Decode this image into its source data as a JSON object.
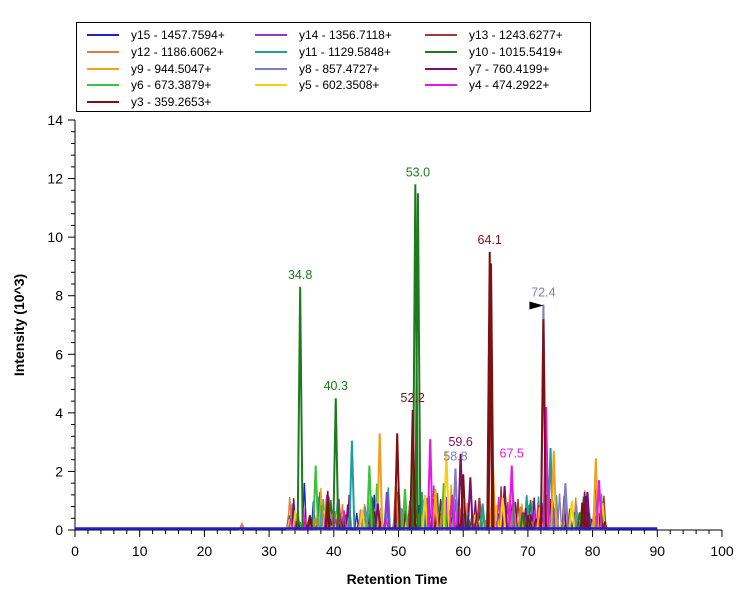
{
  "chart_data": {
    "type": "line",
    "title": "",
    "xlabel": "Retention Time",
    "ylabel": "Intensity (10^3)",
    "xlim": [
      0,
      100
    ],
    "ylim": [
      0,
      14
    ],
    "x_ticks": [
      "0",
      "10",
      "20",
      "30",
      "40",
      "50",
      "60",
      "70",
      "80",
      "90",
      "100"
    ],
    "y_ticks": [
      "0",
      "2",
      "4",
      "6",
      "8",
      "10",
      "12",
      "14"
    ],
    "grid": false,
    "legend_position": "top",
    "series": [
      {
        "name": "y15 - 1457.7594+",
        "color": "#1f1fd6",
        "peaks": []
      },
      {
        "name": "y14 - 1356.7118+",
        "color": "#9b30d0",
        "peaks": [
          [
            48.2,
            1.3
          ],
          [
            54.5,
            1.1
          ],
          [
            73.8,
            1.0
          ]
        ]
      },
      {
        "name": "y13 - 1243.6277+",
        "color": "#a33a3a",
        "peaks": [
          [
            40.8,
            0.8
          ],
          [
            51.8,
            1.0
          ],
          [
            62.5,
            1.1
          ]
        ]
      },
      {
        "name": "y12 - 1186.6062+",
        "color": "#e07b39",
        "peaks": [
          [
            25.8,
            0.2
          ],
          [
            37.2,
            0.4
          ],
          [
            49.6,
            1.5
          ],
          [
            56.8,
            0.9
          ],
          [
            68.9,
            0.8
          ]
        ]
      },
      {
        "name": "y11 - 1129.5848+",
        "color": "#1a9e9e",
        "peaks": [
          [
            42.8,
            3.05
          ],
          [
            53.6,
            1.3
          ],
          [
            63.0,
            0.9
          ],
          [
            73.5,
            2.8
          ]
        ]
      },
      {
        "name": "y10 - 1015.5419+",
        "color": "#1d7a1d",
        "peaks": [
          [
            34.8,
            8.3
          ],
          [
            40.3,
            4.5
          ],
          [
            52.6,
            11.8
          ],
          [
            53.0,
            11.5
          ],
          [
            45.9,
            1.1
          ],
          [
            58.2,
            0.9
          ],
          [
            69.2,
            0.6
          ],
          [
            78.0,
            0.6
          ]
        ]
      },
      {
        "name": "y9 - 944.5047+",
        "color": "#f0a020",
        "peaks": [
          [
            47.1,
            3.3
          ],
          [
            55.7,
            1.4
          ],
          [
            64.6,
            2.2
          ],
          [
            71.8,
            0.8
          ],
          [
            74.0,
            2.7
          ],
          [
            80.5,
            2.45
          ]
        ]
      },
      {
        "name": "y8 - 857.4727+",
        "color": "#7f7fbf",
        "peaks": [
          [
            44.8,
            0.8
          ],
          [
            58.8,
            2.1
          ],
          [
            72.4,
            7.7
          ],
          [
            75.8,
            1.6
          ]
        ]
      },
      {
        "name": "y7 - 760.4199+",
        "color": "#7a0f6f",
        "peaks": [
          [
            46.8,
            0.9
          ],
          [
            59.6,
            2.6
          ],
          [
            61.1,
            1.8
          ],
          [
            66.4,
            1.5
          ],
          [
            79.2,
            1.3
          ]
        ]
      },
      {
        "name": "y6 - 673.3879+",
        "color": "#3cc23c",
        "peaks": [
          [
            37.2,
            2.2
          ],
          [
            45.5,
            2.2
          ],
          [
            51.0,
            1.4
          ],
          [
            57.0,
            1.6
          ],
          [
            67.8,
            0.9
          ],
          [
            73.0,
            1.2
          ]
        ]
      },
      {
        "name": "y5 - 602.3508+",
        "color": "#f5d10c",
        "peaks": [
          [
            44.4,
            0.7
          ],
          [
            54.1,
            1.2
          ],
          [
            57.4,
            2.7
          ],
          [
            66.1,
            1.1
          ],
          [
            76.8,
            1.0
          ]
        ]
      },
      {
        "name": "y4 - 474.2922+",
        "color": "#e817e8",
        "peaks": [
          [
            54.9,
            3.1
          ],
          [
            58.3,
            1.2
          ],
          [
            67.5,
            2.2
          ],
          [
            72.8,
            4.2
          ],
          [
            81.0,
            1.7
          ]
        ]
      },
      {
        "name": "y3 - 359.2653+",
        "color": "#7d1010",
        "peaks": [
          [
            36.3,
            0.5
          ],
          [
            49.8,
            3.3
          ],
          [
            52.2,
            4.1
          ],
          [
            60.0,
            1.9
          ],
          [
            64.1,
            9.5
          ],
          [
            64.3,
            9.1
          ],
          [
            72.4,
            7.2
          ],
          [
            78.6,
            0.9
          ]
        ]
      }
    ],
    "annotations": [
      {
        "text": "34.8",
        "x": 34.8,
        "y": 8.3,
        "color": "#1d7a1d"
      },
      {
        "text": "40.3",
        "x": 40.3,
        "y": 4.5,
        "color": "#1d7a1d"
      },
      {
        "text": "53.0",
        "x": 53.0,
        "y": 11.8,
        "color": "#1d7a1d"
      },
      {
        "text": "52.2",
        "x": 52.2,
        "y": 4.1,
        "color": "#7d1010"
      },
      {
        "text": "64.1",
        "x": 64.1,
        "y": 9.5,
        "color": "#7d1010"
      },
      {
        "text": "72.4",
        "x": 72.4,
        "y": 7.7,
        "color": "#7f7fbf"
      },
      {
        "text": "59.6",
        "x": 59.6,
        "y": 2.6,
        "color": "#7a0f6f"
      },
      {
        "text": "58.8",
        "x": 58.8,
        "y": 2.1,
        "color": "#7f7fbf"
      },
      {
        "text": "67.5",
        "x": 67.5,
        "y": 2.2,
        "color": "#e817e8"
      }
    ]
  }
}
